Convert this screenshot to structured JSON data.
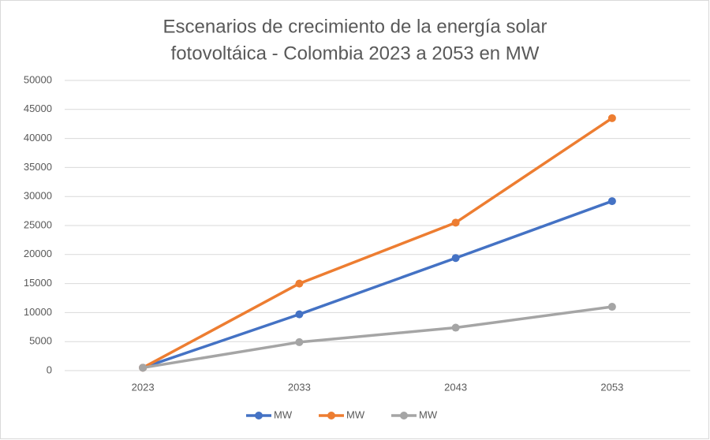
{
  "chart_data": {
    "type": "line",
    "title": [
      "Escenarios de crecimiento de la energía solar",
      "fotovoltáica - Colombia 2023 a 2053 en MW"
    ],
    "categories": [
      "2023",
      "2033",
      "2043",
      "2053"
    ],
    "series": [
      {
        "name": "MW",
        "color": "#4472c4",
        "values": [
          500,
          9700,
          19400,
          29200
        ]
      },
      {
        "name": "MW",
        "color": "#ed7d31",
        "values": [
          500,
          15000,
          25500,
          43500
        ]
      },
      {
        "name": "MW",
        "color": "#a5a5a5",
        "values": [
          500,
          4900,
          7400,
          11000
        ]
      }
    ],
    "ylim": [
      0,
      50000
    ],
    "yticks": [
      0,
      5000,
      10000,
      15000,
      20000,
      25000,
      30000,
      35000,
      40000,
      45000,
      50000
    ],
    "grid": true,
    "legend": "bottom"
  }
}
